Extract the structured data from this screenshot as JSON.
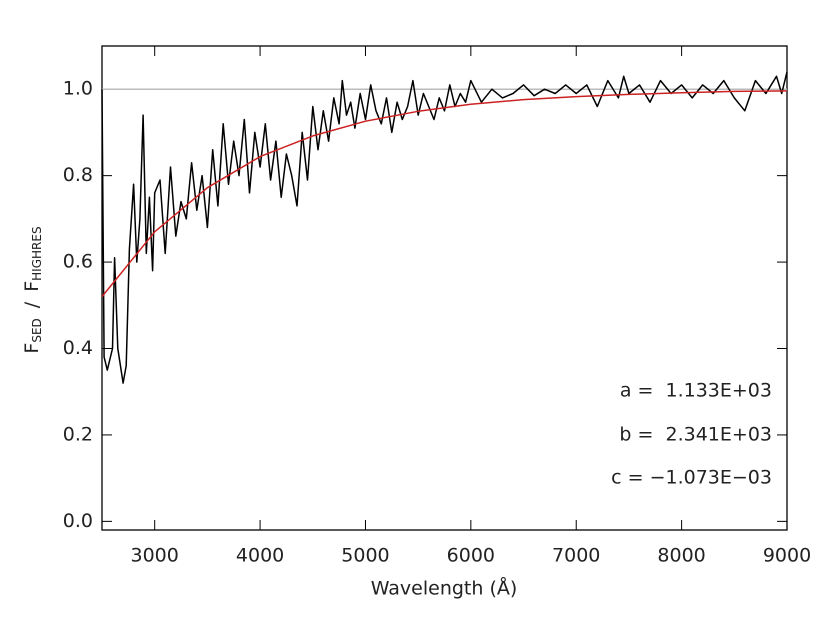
{
  "chart_data": {
    "type": "line",
    "x_label": "Wavelength (Å)",
    "y_label": [
      "F",
      "SED",
      "/",
      "F",
      "HIGHRES"
    ],
    "annotations": [
      "a =  1.133E+03",
      "b =  2.341E+03",
      "c = −1.073E−03"
    ],
    "xlim": [
      2500,
      9000
    ],
    "ylim": [
      -0.02,
      1.1
    ],
    "xticks": [
      3000,
      4000,
      5000,
      6000,
      7000,
      8000,
      9000
    ],
    "yticks": [
      {
        "value": 0,
        "label": "0.0"
      },
      0.2,
      0.4,
      0.6,
      0.8,
      {
        "value": 1,
        "label": "1.0"
      }
    ],
    "reference_line": {
      "value": 1,
      "color": "#bbbbbb"
    },
    "series": [
      {
        "color": "#000000",
        "x": [
          2500,
          2520,
          2550,
          2600,
          2620,
          2650,
          2700,
          2730,
          2760,
          2800,
          2830,
          2860,
          2890,
          2920,
          2950,
          2980,
          3000,
          3050,
          3100,
          3150,
          3200,
          3250,
          3300,
          3350,
          3400,
          3450,
          3500,
          3550,
          3600,
          3650,
          3700,
          3750,
          3800,
          3850,
          3900,
          3950,
          4000,
          4050,
          4100,
          4150,
          4200,
          4250,
          4300,
          4350,
          4400,
          4450,
          4500,
          4550,
          4600,
          4650,
          4700,
          4750,
          4780,
          4820,
          4860,
          4900,
          4950,
          5000,
          5050,
          5100,
          5150,
          5200,
          5250,
          5300,
          5350,
          5400,
          5450,
          5500,
          5550,
          5600,
          5650,
          5700,
          5750,
          5800,
          5850,
          5900,
          5950,
          6000,
          6100,
          6200,
          6300,
          6400,
          6500,
          6600,
          6700,
          6800,
          6900,
          7000,
          7100,
          7200,
          7300,
          7400,
          7450,
          7500,
          7600,
          7700,
          7800,
          7900,
          8000,
          8100,
          8200,
          8300,
          8400,
          8500,
          8600,
          8700,
          8800,
          8900,
          8950,
          9000
        ],
        "values": [
          1.0,
          0.38,
          0.35,
          0.4,
          0.61,
          0.4,
          0.32,
          0.36,
          0.63,
          0.78,
          0.6,
          0.7,
          0.94,
          0.62,
          0.75,
          0.58,
          0.76,
          0.79,
          0.62,
          0.82,
          0.66,
          0.74,
          0.7,
          0.83,
          0.72,
          0.8,
          0.68,
          0.86,
          0.73,
          0.92,
          0.78,
          0.88,
          0.8,
          0.93,
          0.76,
          0.9,
          0.82,
          0.92,
          0.79,
          0.88,
          0.75,
          0.85,
          0.8,
          0.73,
          0.9,
          0.79,
          0.96,
          0.86,
          0.95,
          0.88,
          0.98,
          0.92,
          1.02,
          0.94,
          0.97,
          0.91,
          0.99,
          0.93,
          1.01,
          0.95,
          0.92,
          0.98,
          0.9,
          0.97,
          0.93,
          0.96,
          1.02,
          0.94,
          0.99,
          0.96,
          0.93,
          0.98,
          0.95,
          1.01,
          0.96,
          0.99,
          0.97,
          1.02,
          0.97,
          1.0,
          0.98,
          0.99,
          1.01,
          0.985,
          1.0,
          0.99,
          1.01,
          0.99,
          1.01,
          0.96,
          1.02,
          0.98,
          1.03,
          0.99,
          1.01,
          0.97,
          1.02,
          0.99,
          1.01,
          0.98,
          1.01,
          0.99,
          1.02,
          0.98,
          0.95,
          1.02,
          0.99,
          1.03,
          0.99,
          1.04
        ]
      },
      {
        "color": "#cc2222",
        "x": [
          2500,
          3000,
          3500,
          4000,
          4500,
          5000,
          5500,
          6000,
          6500,
          7000,
          7500,
          8000,
          8500,
          9000
        ],
        "values": [
          0.52,
          0.67,
          0.772,
          0.844,
          0.892,
          0.926,
          0.949,
          0.965,
          0.976,
          0.983,
          0.988,
          0.992,
          0.995,
          0.996
        ]
      }
    ]
  }
}
